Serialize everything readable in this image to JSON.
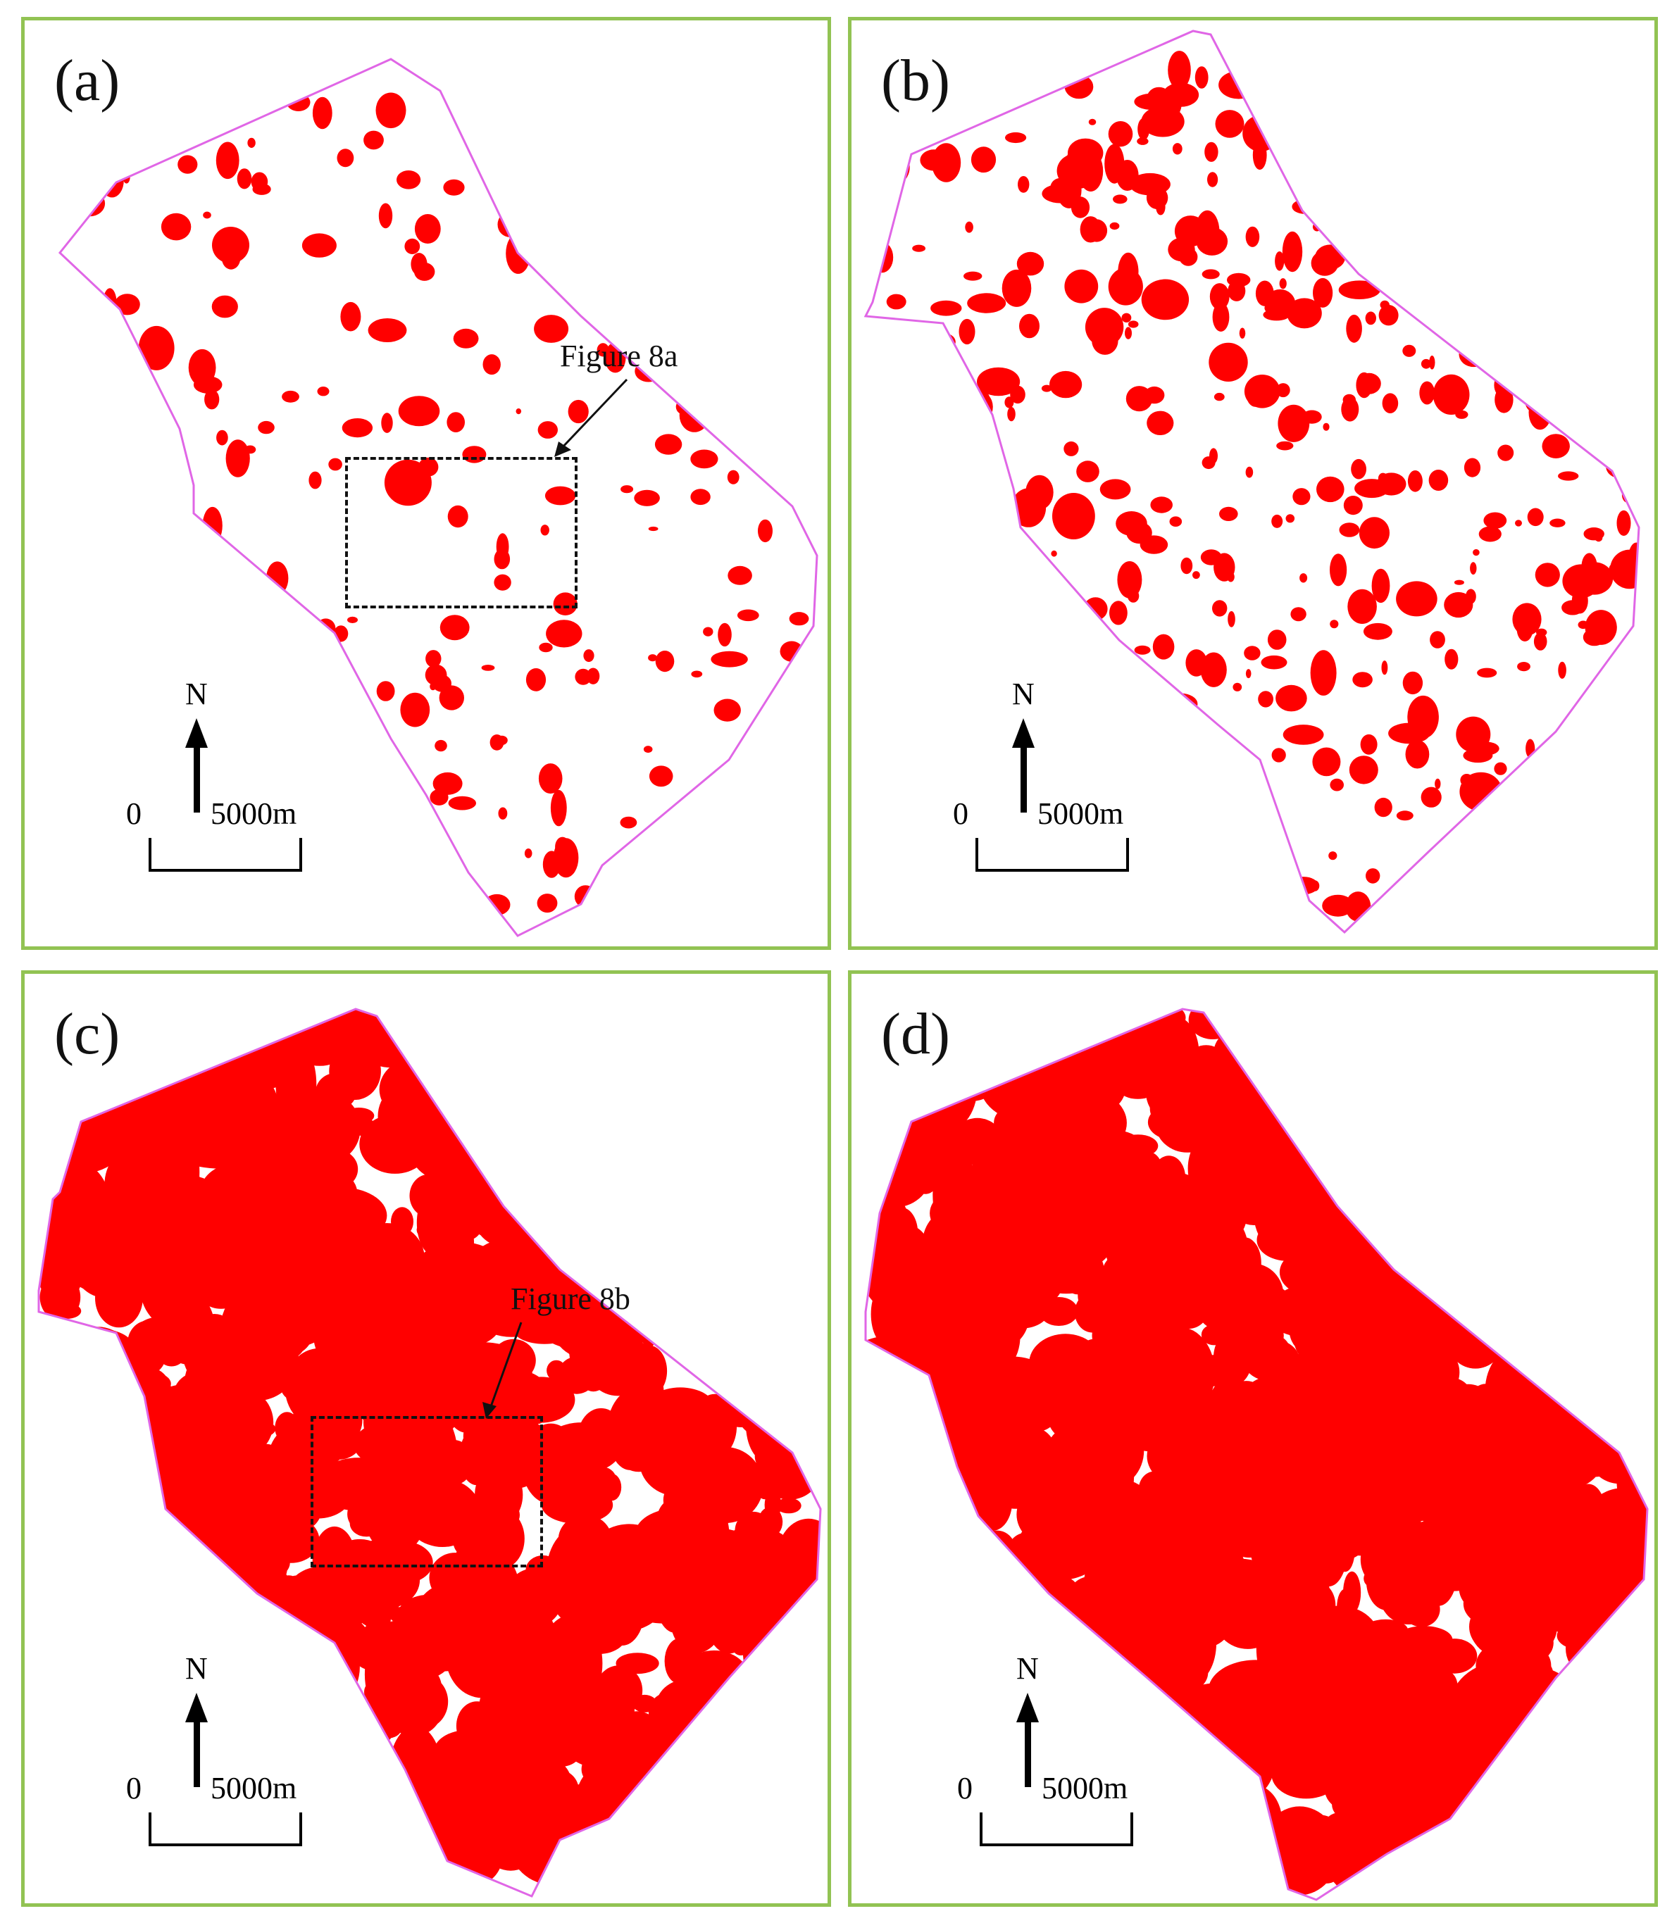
{
  "colors": {
    "frame": "#92c353",
    "boundary": "#e066e6",
    "patch": "#ff0000"
  },
  "panels": [
    {
      "letter": "(a)",
      "north": "N",
      "scale_zero": "0",
      "scale_end": "5000m",
      "annotation": "Figure 8a",
      "density": "low"
    },
    {
      "letter": "(b)",
      "north": "N",
      "scale_zero": "0",
      "scale_end": "5000m",
      "annotation": "",
      "density": "medium"
    },
    {
      "letter": "(c)",
      "north": "N",
      "scale_zero": "0",
      "scale_end": "5000m",
      "annotation": "Figure 8b",
      "density": "high"
    },
    {
      "letter": "(d)",
      "north": "N",
      "scale_zero": "0",
      "scale_end": "5000m",
      "annotation": "",
      "density": "very-high"
    }
  ]
}
